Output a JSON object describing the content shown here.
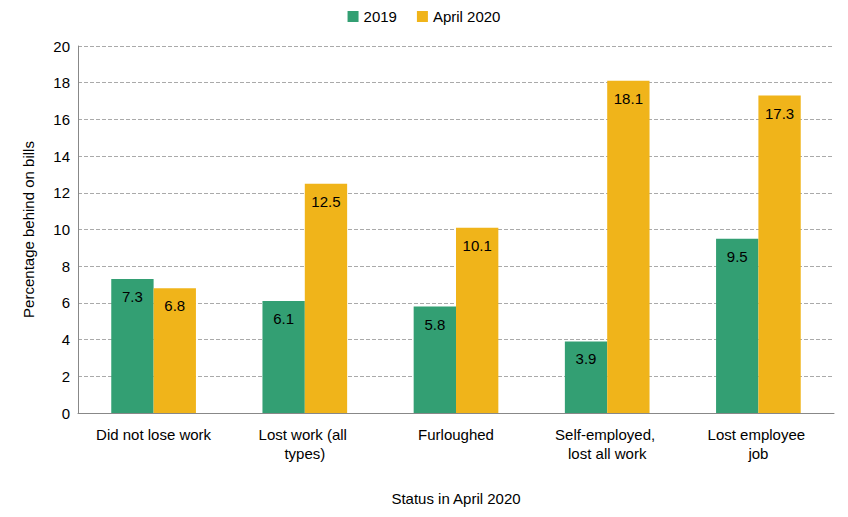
{
  "chart_data": {
    "type": "bar",
    "categories": [
      "Did not lose work",
      "Lost work (all types)",
      "Furloughed",
      "Self-employed, lost all work",
      "Lost employee job"
    ],
    "series": [
      {
        "name": "2019",
        "color": "#339f73",
        "values": [
          7.3,
          6.1,
          5.8,
          3.9,
          9.5
        ]
      },
      {
        "name": "April 2020",
        "color": "#f0b41a",
        "values": [
          6.8,
          12.5,
          10.1,
          18.1,
          17.3
        ]
      }
    ],
    "xlabel": "Status in April 2020",
    "ylabel": "Percentage behind on bills",
    "ylim": [
      0,
      20
    ],
    "yticks": [
      0,
      2,
      4,
      6,
      8,
      10,
      12,
      14,
      16,
      18,
      20
    ],
    "grid": true,
    "legend": "top",
    "data_labels": true
  }
}
